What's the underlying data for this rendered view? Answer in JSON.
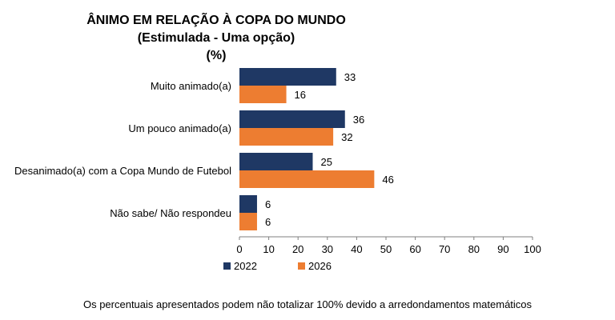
{
  "chart_data": {
    "type": "bar",
    "orientation": "horizontal",
    "title": "ÂNIMO EM RELAÇÃO À COPA DO MUNDO",
    "subtitle": "(Estimulada - Uma opção)",
    "unit_label": "(%)",
    "categories": [
      "Muito animado(a)",
      "Um pouco animado(a)",
      "Desanimado(a) com a Copa Mundo de Futebol",
      "Não sabe/ Não respondeu"
    ],
    "series": [
      {
        "name": "2022",
        "values": [
          33,
          36,
          25,
          6
        ],
        "color": "#1f3864"
      },
      {
        "name": "2026",
        "values": [
          16,
          32,
          46,
          6
        ],
        "color": "#ed7d31"
      }
    ],
    "xlim": [
      0,
      100
    ],
    "xticks": [
      "0",
      "10",
      "20",
      "30",
      "40",
      "50",
      "60",
      "70",
      "80",
      "90",
      "100"
    ],
    "grid": false,
    "legend_position": "bottom-left"
  },
  "footnote": "Os percentuais apresentados podem não totalizar 100% devido a arredondamentos matemáticos"
}
